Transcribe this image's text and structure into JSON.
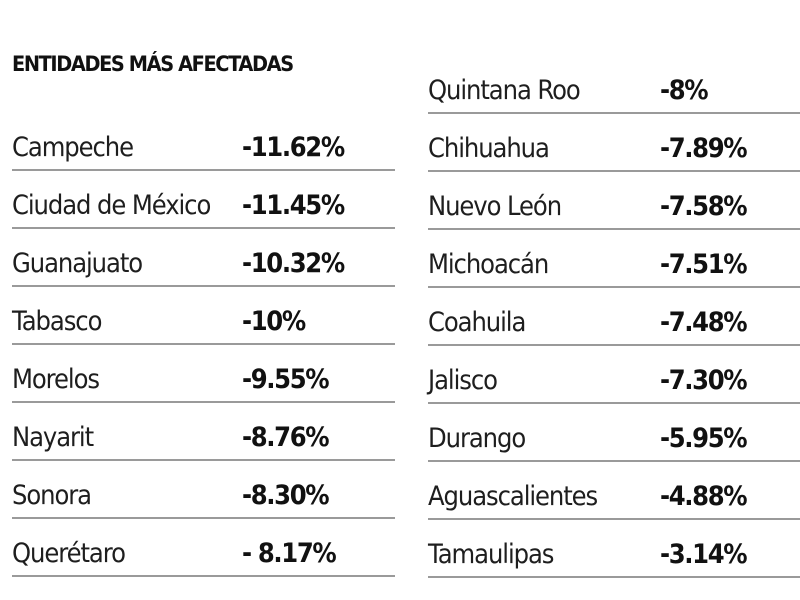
{
  "title": "ENTIDADES MÁS AFECTADAS",
  "left_column": [
    {
      "state": "Campeche",
      "value": "-11.62%"
    },
    {
      "state": "Ciudad de México",
      "value": "-11.45%"
    },
    {
      "state": "Guanajuato",
      "value": "-10.32%"
    },
    {
      "state": "Tabasco",
      "value": "-10%"
    },
    {
      "state": "Morelos",
      "value": "-9.55%"
    },
    {
      "state": "Nayarit",
      "value": "-8.76%"
    },
    {
      "state": "Sonora",
      "value": "-8.30%"
    },
    {
      "state": "Querétaro",
      "value": "- 8.17%"
    }
  ],
  "right_column": [
    {
      "state": "Quintana Roo",
      "value": "-8%"
    },
    {
      "state": "Chihuahua",
      "value": "-7.89%"
    },
    {
      "state": "Nuevo León",
      "value": "-7.58%"
    },
    {
      "state": "Michoacán",
      "value": "-7.51%"
    },
    {
      "state": "Coahuila",
      "value": "-7.48%"
    },
    {
      "state": "Jalisco",
      "value": "-7.30%"
    },
    {
      "state": "Durango",
      "value": "-5.95%"
    },
    {
      "state": "Aguascalientes",
      "value": "-4.88%"
    },
    {
      "state": "Tamaulipas",
      "value": "-3.14%"
    }
  ]
}
